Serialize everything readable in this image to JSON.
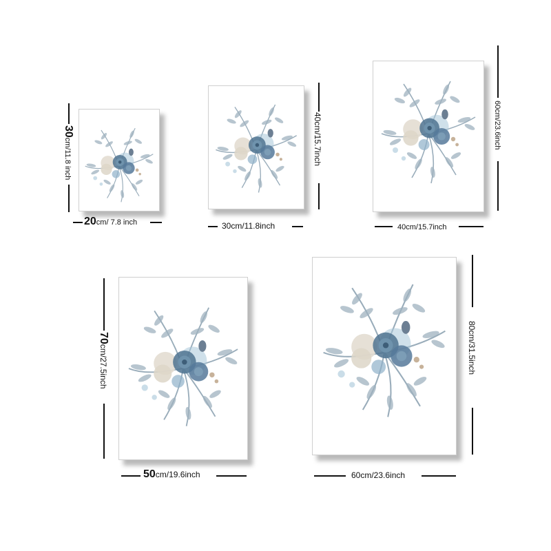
{
  "posters": [
    {
      "id": "p1",
      "width_main": "20",
      "width_rest": "cm/ 7.8 inch",
      "height_main": "30",
      "height_rest": "cm/11.8 inch"
    },
    {
      "id": "p2",
      "width_label": "30cm/11.8inch",
      "height_label": "40cm/15.7inch"
    },
    {
      "id": "p3",
      "width_label": "40cm/15.7inch",
      "height_label": "60cm/23.6inch"
    },
    {
      "id": "p4",
      "width_main": "50",
      "width_rest": "cm/19.6inch",
      "height_main": "70",
      "height_rest": "cm/27.5inch"
    },
    {
      "id": "p5",
      "width_label": "60cm/23.6inch",
      "height_label": "80cm/31.5inch"
    }
  ],
  "artwork": "watercolor-blue-floral-bouquet",
  "colors": {
    "leaf": "#8ea4b3",
    "rose_dark": "#4f7391",
    "rose_light": "#8fb1c9",
    "cream": "#e3ddd2",
    "accent": "#a7c6d9"
  }
}
